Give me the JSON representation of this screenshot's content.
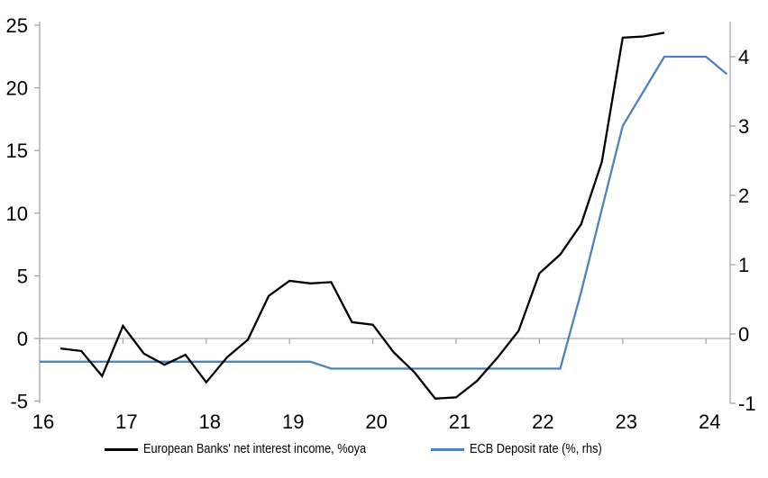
{
  "colors": {
    "axis_gray": "#a6a6a6",
    "series_black": "#000000",
    "series_blue": "#4f81bd",
    "text": "#000000"
  },
  "chart_data": {
    "type": "line",
    "title": "",
    "grid": "off",
    "legend_position": "bottom",
    "x_axis": {
      "tick_values": [
        16,
        17,
        18,
        19,
        20,
        21,
        22,
        23,
        24
      ],
      "tick_labels": [
        "16",
        "17",
        "18",
        "19",
        "20",
        "21",
        "22",
        "23",
        "24"
      ],
      "range": [
        16,
        24.3
      ]
    },
    "left_axis": {
      "tick_values": [
        -5,
        0,
        5,
        10,
        15,
        20,
        25
      ],
      "tick_labels": [
        "-5",
        "0",
        "5",
        "10",
        "15",
        "20",
        "25"
      ],
      "range": [
        -5,
        25.5
      ]
    },
    "right_axis": {
      "tick_values": [
        -1,
        0,
        1,
        2,
        3,
        4
      ],
      "tick_labels": [
        "-1",
        "0",
        "1",
        "2",
        "3",
        "4"
      ],
      "range": [
        -1,
        4.55
      ]
    },
    "series": [
      {
        "id": "net-interest-income",
        "name": "European Banks' net interest income, %oya",
        "axis": "left",
        "color": "#000000",
        "x": [
          16.25,
          16.5,
          16.75,
          17.0,
          17.25,
          17.5,
          17.75,
          18.0,
          18.25,
          18.5,
          18.75,
          19.0,
          19.25,
          19.5,
          19.75,
          20.0,
          20.25,
          20.5,
          20.75,
          21.0,
          21.25,
          21.5,
          21.75,
          22.0,
          22.25,
          22.5,
          22.75,
          23.0,
          23.25,
          23.5
        ],
        "values": [
          -0.8,
          -1.0,
          -3.0,
          1.0,
          -1.2,
          -2.1,
          -1.3,
          -3.5,
          -1.5,
          -0.1,
          3.4,
          4.6,
          4.4,
          4.5,
          1.3,
          1.1,
          -1.1,
          -2.7,
          -4.8,
          -4.7,
          -3.4,
          -1.5,
          0.6,
          5.2,
          6.7,
          9.1,
          14.1,
          24.0,
          24.1,
          24.4
        ]
      },
      {
        "id": "ecb-deposit-rate",
        "name": "ECB Deposit rate (%, rhs)",
        "axis": "right",
        "color": "#4f81bd",
        "x": [
          16.0,
          16.25,
          16.5,
          16.75,
          17.0,
          17.25,
          17.5,
          17.75,
          18.0,
          18.25,
          18.5,
          18.75,
          19.0,
          19.25,
          19.5,
          19.75,
          20.0,
          20.25,
          20.5,
          20.75,
          21.0,
          21.25,
          21.5,
          21.75,
          22.0,
          22.25,
          22.5,
          22.75,
          23.0,
          23.25,
          23.5,
          23.75,
          24.0,
          24.25
        ],
        "values": [
          -0.4,
          -0.4,
          -0.4,
          -0.4,
          -0.4,
          -0.4,
          -0.4,
          -0.4,
          -0.4,
          -0.4,
          -0.4,
          -0.4,
          -0.4,
          -0.4,
          -0.5,
          -0.5,
          -0.5,
          -0.5,
          -0.5,
          -0.5,
          -0.5,
          -0.5,
          -0.5,
          -0.5,
          -0.5,
          -0.5,
          0.6,
          1.8,
          3.0,
          3.5,
          4.0,
          4.0,
          4.0,
          3.75
        ]
      }
    ]
  },
  "legend": {
    "items": [
      {
        "label": "European Banks' net interest income, %oya",
        "color": "#000000"
      },
      {
        "label": "ECB Deposit rate (%, rhs)",
        "color": "#4f81bd"
      }
    ]
  }
}
